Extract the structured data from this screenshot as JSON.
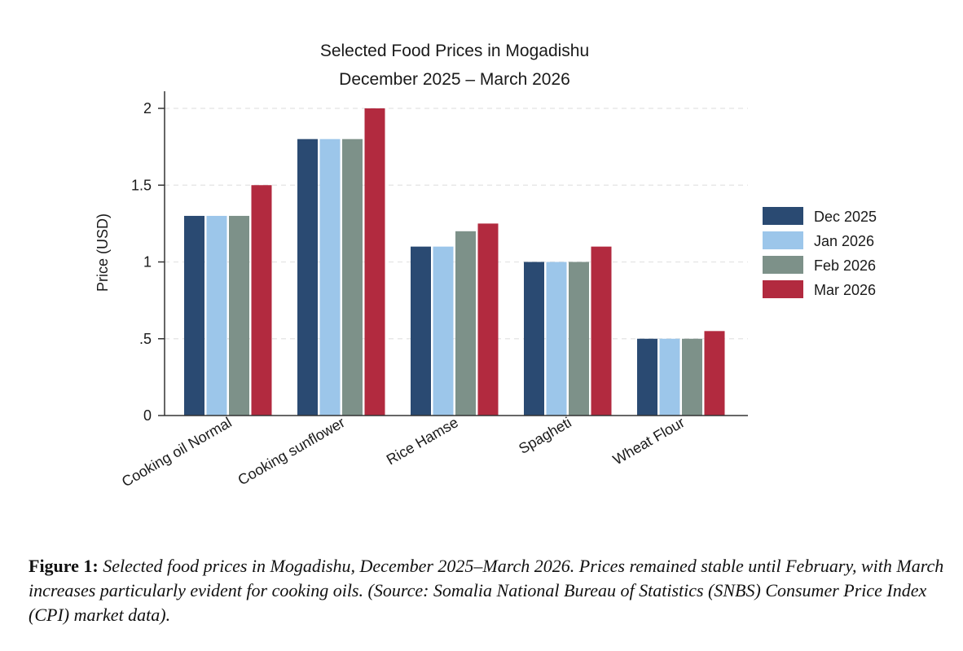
{
  "chart_data": {
    "type": "bar",
    "title": "Selected Food Prices in Mogadishu",
    "subtitle": "December 2025 – March 2026",
    "xlabel": "",
    "ylabel": "Price (USD)",
    "ylim": [
      0,
      2.05
    ],
    "yticks": [
      0,
      0.5,
      1,
      1.5,
      2
    ],
    "ytick_labels": [
      "0",
      ".5",
      "1",
      "1.5",
      "2"
    ],
    "grid": true,
    "legend_position": "right",
    "categories": [
      "Cooking oil Normal",
      "Cooking sunflower",
      "Rice Hamse",
      "Spagheti",
      "Wheat Flour"
    ],
    "series": [
      {
        "name": "Dec 2025",
        "color": "#2a4a72",
        "values": [
          1.3,
          1.8,
          1.1,
          1.0,
          0.5
        ]
      },
      {
        "name": "Jan 2026",
        "color": "#9cc6ea",
        "values": [
          1.3,
          1.8,
          1.1,
          1.0,
          0.5
        ]
      },
      {
        "name": "Feb 2026",
        "color": "#7d9189",
        "values": [
          1.3,
          1.8,
          1.2,
          1.0,
          0.5
        ]
      },
      {
        "name": "Mar 2026",
        "color": "#b22a3f",
        "values": [
          1.5,
          2.0,
          1.25,
          1.1,
          0.55
        ]
      }
    ]
  },
  "caption": {
    "label": "Figure 1:",
    "text": "Selected food prices in Mogadishu, December 2025–March 2026. Prices remained stable until February, with March increases particularly evident for cooking oils. (Source: Somalia National Bureau of Statistics (SNBS) Consumer Price Index (CPI) market data)."
  }
}
